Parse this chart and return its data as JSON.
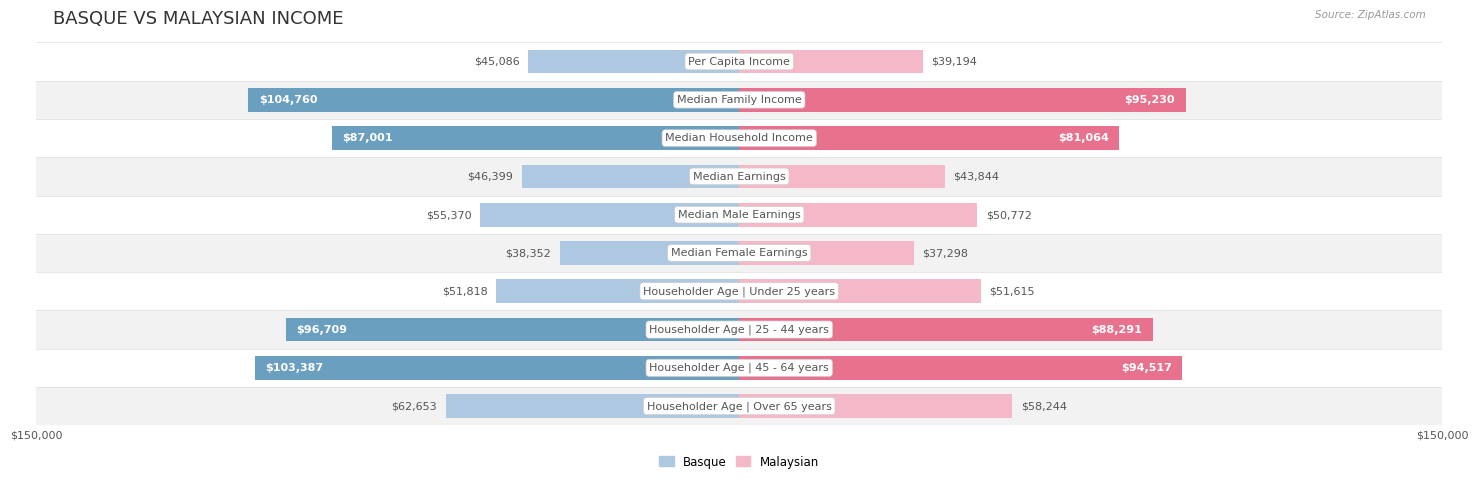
{
  "title": "BASQUE VS MALAYSIAN INCOME",
  "source": "Source: ZipAtlas.com",
  "categories": [
    "Per Capita Income",
    "Median Family Income",
    "Median Household Income",
    "Median Earnings",
    "Median Male Earnings",
    "Median Female Earnings",
    "Householder Age | Under 25 years",
    "Householder Age | 25 - 44 years",
    "Householder Age | 45 - 64 years",
    "Householder Age | Over 65 years"
  ],
  "basque_values": [
    45086,
    104760,
    87001,
    46399,
    55370,
    38352,
    51818,
    96709,
    103387,
    62653
  ],
  "malaysian_values": [
    39194,
    95230,
    81064,
    43844,
    50772,
    37298,
    51615,
    88291,
    94517,
    58244
  ],
  "max_value": 150000,
  "basque_color_light": "#adc8e0",
  "basque_color_dark": "#6a9fc0",
  "malaysian_color_light": "#f5b8c8",
  "malaysian_color_dark": "#e8718e",
  "bg_color": "#ffffff",
  "row_bg_odd": "#f2f2f2",
  "row_bg_even": "#ffffff",
  "divider_color": "#dddddd",
  "title_color": "#333333",
  "text_color": "#555555",
  "white_text": "#ffffff",
  "source_color": "#999999",
  "bar_height": 0.62,
  "title_fontsize": 13,
  "label_fontsize": 8,
  "value_fontsize": 8,
  "axis_fontsize": 8,
  "legend_fontsize": 8.5
}
